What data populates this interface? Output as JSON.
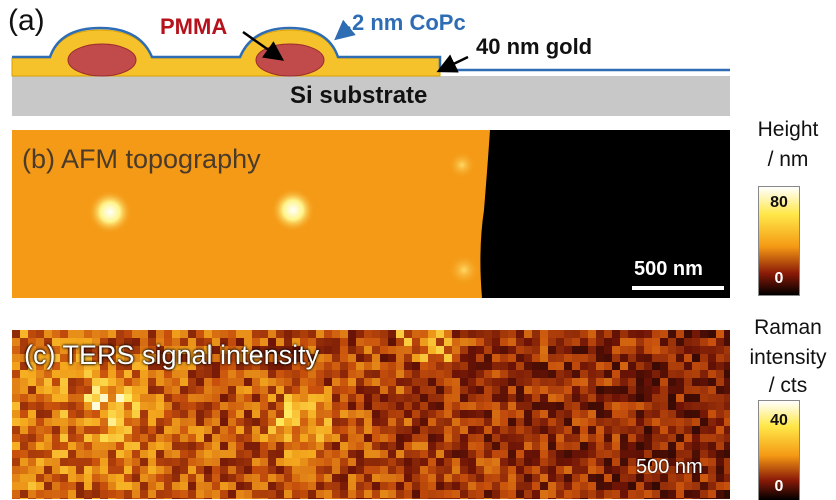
{
  "panel_a": {
    "letter": "(a)",
    "pmma_label": "PMMA",
    "copc_label": "2 nm CoPc",
    "gold_label": "40 nm gold",
    "substrate_label": "Si substrate",
    "colors": {
      "pmma": "#b5121b",
      "copc": "#2e6db4",
      "gold": "#f6c22c",
      "substrate": "#c8c8c8"
    }
  },
  "panel_b": {
    "label": "(b) AFM topography",
    "scalebar_label": "500 nm",
    "colorbar": {
      "title_line1": "Height",
      "title_line2": "/ nm",
      "max": "80",
      "min": "0"
    }
  },
  "panel_c": {
    "label": "(c) TERS signal intensity",
    "scalebar_label": "500 nm",
    "colorbar": {
      "title_line1": "Raman",
      "title_line2": "intensity",
      "title_line3": "/ cts",
      "max": "40",
      "min": "0"
    }
  }
}
